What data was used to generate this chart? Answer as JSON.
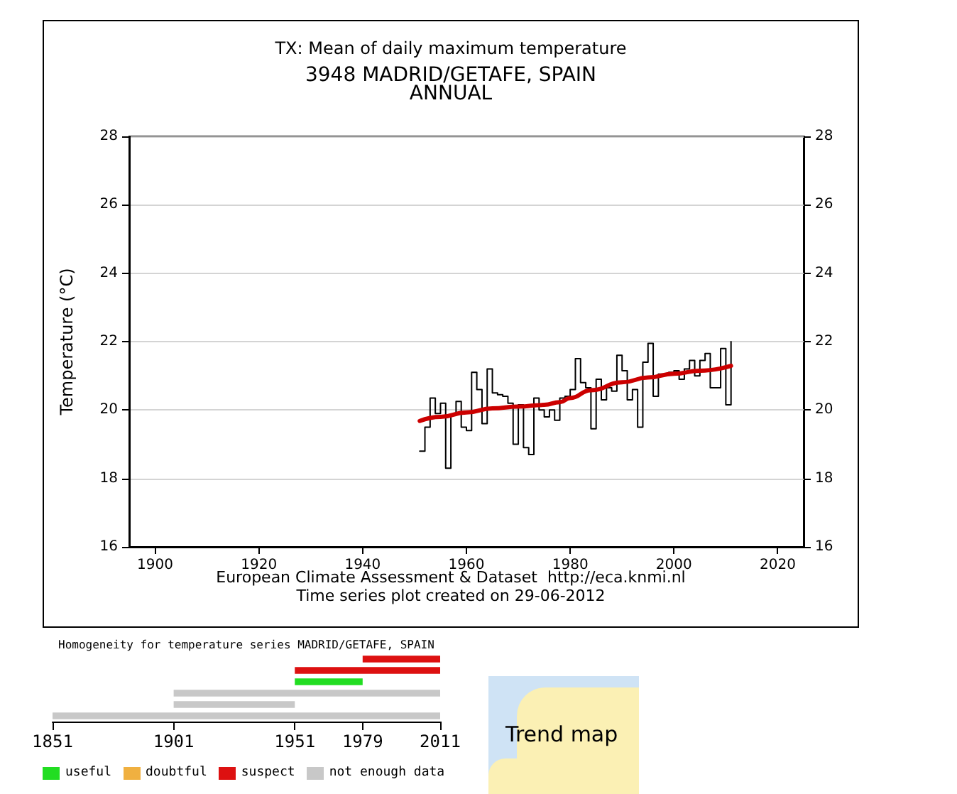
{
  "chart_data": [
    {
      "type": "step",
      "title": "TX: Mean of daily maximum temperature",
      "subtitle": "3948 MADRID/GETAFE, SPAIN",
      "ylabel": "Temperature (°C)",
      "annotations": [
        "ANNUAL",
        "European Climate Assessment & Dataset  http://eca.knmi.nl",
        "Time series plot created on 29-06-2012"
      ],
      "xlim": [
        1895,
        2025
      ],
      "xticks": [
        1900,
        1920,
        1940,
        1960,
        1980,
        2000,
        2020
      ],
      "ylim": [
        16,
        28
      ],
      "yticks": [
        16,
        18,
        20,
        22,
        24,
        26,
        28
      ],
      "y2lim": [
        16,
        28
      ],
      "y2ticks": [
        16,
        18,
        20,
        22,
        24,
        26,
        28
      ],
      "grid": "y",
      "series": [
        {
          "type": "step",
          "color": "#000000",
          "x": [
            1951,
            1952,
            1953,
            1954,
            1955,
            1956,
            1957,
            1958,
            1959,
            1960,
            1961,
            1962,
            1963,
            1964,
            1965,
            1966,
            1967,
            1968,
            1969,
            1970,
            1971,
            1972,
            1973,
            1974,
            1975,
            1976,
            1977,
            1978,
            1979,
            1980,
            1981,
            1982,
            1983,
            1984,
            1985,
            1986,
            1987,
            1988,
            1989,
            1990,
            1991,
            1992,
            1993,
            1994,
            1995,
            1996,
            1997,
            1998,
            1999,
            2000,
            2001,
            2002,
            2003,
            2004,
            2005,
            2006,
            2007,
            2008,
            2009,
            2010,
            2011
          ],
          "values": [
            18.8,
            19.5,
            20.35,
            19.9,
            20.2,
            18.3,
            19.85,
            20.25,
            19.5,
            19.4,
            21.1,
            20.6,
            19.6,
            21.2,
            20.5,
            20.45,
            20.4,
            20.2,
            19.0,
            20.15,
            18.9,
            18.7,
            20.35,
            20.0,
            19.8,
            20.0,
            19.7,
            20.35,
            20.4,
            20.6,
            21.5,
            20.8,
            20.65,
            19.45,
            20.9,
            20.3,
            20.65,
            20.55,
            21.6,
            21.15,
            20.3,
            20.6,
            19.5,
            21.4,
            21.95,
            20.4,
            21.05,
            21.05,
            21.1,
            21.15,
            20.9,
            21.2,
            21.45,
            21.0,
            21.45,
            21.65,
            20.65,
            20.65,
            21.8,
            20.15,
            22.0
          ]
        },
        {
          "type": "line",
          "color": "#cc0000",
          "x": [
            1951,
            1955,
            1960,
            1965,
            1970,
            1975,
            1978,
            1980,
            1984,
            1990,
            1995,
            2000,
            2005,
            2011
          ],
          "values": [
            19.68,
            19.8,
            19.93,
            20.05,
            20.1,
            20.15,
            20.23,
            20.35,
            20.58,
            20.81,
            20.95,
            21.06,
            21.15,
            21.29
          ]
        }
      ]
    },
    {
      "type": "bar",
      "orientation": "horizontal",
      "title": "Homogeneity for temperature series MADRID/GETAFE, SPAIN",
      "categories": [
        null,
        null,
        null,
        null,
        null,
        null
      ],
      "xlim": [
        1851,
        2011
      ],
      "xticks": [
        1851,
        1901,
        1951,
        1979,
        2011
      ],
      "tick_labels": "x",
      "base": [
        1979,
        1951,
        1951,
        1901,
        1901,
        1851
      ],
      "values": [
        32,
        60,
        28,
        110,
        50,
        160
      ],
      "colors": [
        "#dd1111",
        "#dd1111",
        "#22dd22",
        "#c8c8c8",
        "#c8c8c8",
        "#c8c8c8"
      ]
    },
    {
      "type": "other",
      "annotations": [
        "useful",
        "doubtful",
        "suspect",
        "not enough data"
      ],
      "colors": [
        "#22dd22",
        "#f0b040",
        "#dd1111",
        "#c8c8c8"
      ]
    },
    {
      "type": "other",
      "title": "Trend map"
    }
  ]
}
